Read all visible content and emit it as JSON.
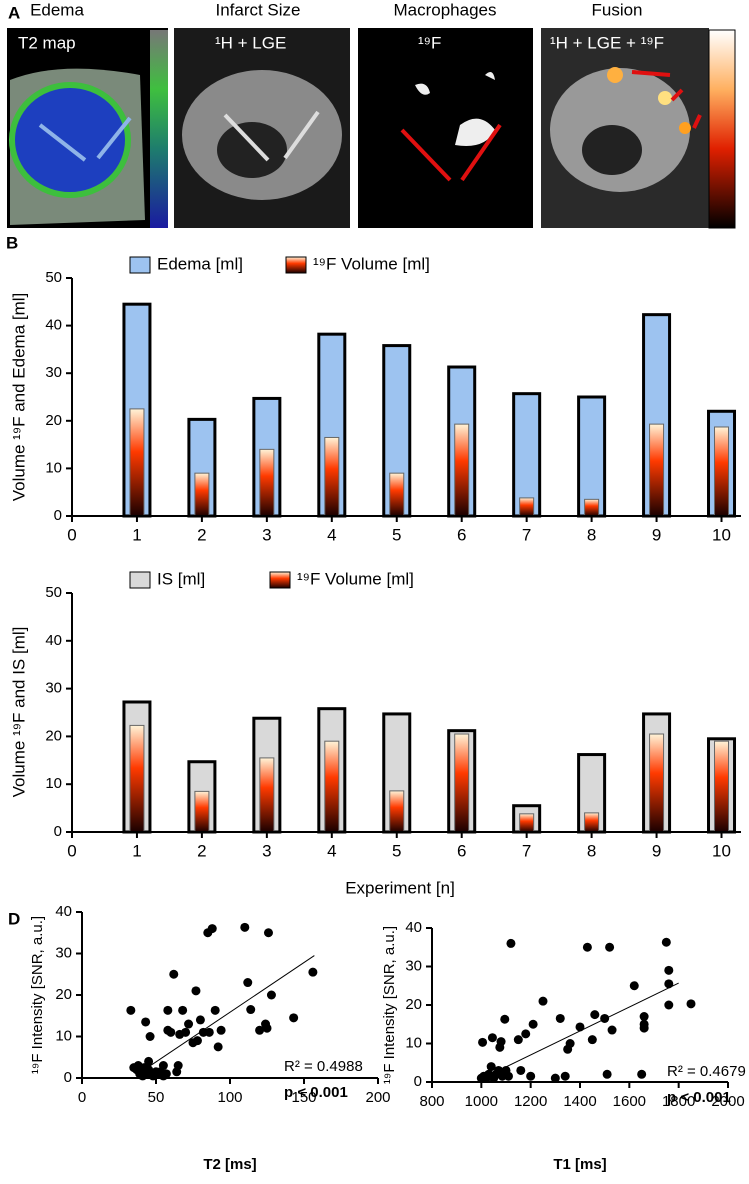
{
  "panel_labels": [
    "A",
    "B",
    "D"
  ],
  "panel_a": [
    {
      "title": "Edema",
      "label": "T2 map"
    },
    {
      "title": "Infarct Size",
      "label": "¹H + LGE"
    },
    {
      "title": "Macrophages",
      "label": "¹⁹F"
    },
    {
      "title": "Fusion",
      "label": "¹H + LGE + ¹⁹F"
    }
  ],
  "chart_data": [
    {
      "type": "bar",
      "ylabel": "Volume ¹⁹F and Edema [ml]",
      "x": [
        1,
        2,
        3,
        4,
        5,
        6,
        7,
        8,
        9,
        10
      ],
      "series": [
        {
          "name": "Edema [ml]",
          "color": "#9dc3f0",
          "values": [
            44.5,
            20.3,
            24.7,
            38.2,
            35.8,
            31.3,
            25.7,
            25,
            42.3,
            22
          ]
        },
        {
          "name": "¹⁹F Volume [ml]",
          "color": "#ff3a00",
          "values": [
            22.5,
            9,
            14,
            16.5,
            9,
            19.3,
            3.8,
            3.5,
            19.3,
            18.7
          ]
        }
      ],
      "xlim": [
        0,
        10.3
      ],
      "xticks": [
        0,
        1,
        2,
        3,
        4,
        5,
        6,
        7,
        8,
        9,
        10
      ],
      "ylim": [
        0,
        50
      ],
      "yticks": [
        0,
        10,
        20,
        30,
        40,
        50
      ]
    },
    {
      "type": "bar",
      "ylabel": "Volume ¹⁹F and IS [ml]",
      "xlabel": "Experiment [n]",
      "x": [
        1,
        2,
        3,
        4,
        5,
        6,
        7,
        8,
        9,
        10
      ],
      "series": [
        {
          "name": "IS [ml]",
          "color": "#d9d9d9",
          "values": [
            27.2,
            14.7,
            23.8,
            25.8,
            24.7,
            21.2,
            5.5,
            16.2,
            24.7,
            19.5
          ]
        },
        {
          "name": "¹⁹F Volume [ml]",
          "color": "#ff3a00",
          "values": [
            22.3,
            8.5,
            15.5,
            19,
            8.6,
            20.5,
            3.8,
            4,
            20.5,
            19
          ]
        }
      ],
      "xlim": [
        0,
        10.3
      ],
      "xticks": [
        0,
        1,
        2,
        3,
        4,
        5,
        6,
        7,
        8,
        9,
        10
      ],
      "ylim": [
        0,
        50
      ],
      "yticks": [
        0,
        10,
        20,
        30,
        40,
        50
      ]
    },
    {
      "type": "scatter",
      "ylabel": "¹⁹F Intensity [SNR, a.u.]",
      "xlabel": "T2 [ms]",
      "color": "#000000",
      "x": [
        33,
        35,
        37,
        38,
        39,
        40,
        41,
        42,
        43,
        44,
        45,
        45,
        46,
        47,
        48,
        50,
        52,
        53,
        55,
        55,
        57,
        58,
        58,
        60,
        62,
        64,
        65,
        66,
        68,
        70,
        72,
        75,
        77,
        78,
        80,
        82,
        85,
        86,
        88,
        90,
        92,
        94,
        110,
        112,
        114,
        120,
        124,
        125,
        126,
        128,
        143,
        156
      ],
      "values": [
        16.3,
        2.5,
        2,
        3,
        1,
        1.5,
        0.5,
        2.5,
        13.5,
        1,
        2,
        4,
        10,
        1,
        0.5,
        1.5,
        1,
        1.5,
        3,
        0.5,
        1,
        16.3,
        11.5,
        11,
        25,
        1.5,
        3,
        10.5,
        16.3,
        11,
        13,
        8.5,
        21,
        9,
        14,
        11,
        35,
        11,
        36,
        16.3,
        7.5,
        11.5,
        36.3,
        23,
        16.5,
        11.5,
        13,
        12,
        35,
        20,
        14.5,
        25.5
      ],
      "trendline": {
        "x": [
          38,
          157
        ],
        "values": [
          1,
          29.5
        ]
      },
      "annotations": [
        "R² = 0.4988",
        "p < 0.001"
      ],
      "xlim": [
        0,
        200
      ],
      "xticks": [
        0,
        50,
        100,
        150,
        200
      ],
      "ylim": [
        0,
        40
      ],
      "yticks": [
        0,
        10,
        20,
        30,
        40
      ]
    },
    {
      "type": "scatter",
      "ylabel": "¹⁹F Intensity [SNR, a.u.]",
      "xlabel": "T1 [ms]",
      "color": "#000000",
      "x": [
        1000,
        1005,
        1010,
        1020,
        1030,
        1040,
        1045,
        1050,
        1060,
        1070,
        1075,
        1080,
        1085,
        1090,
        1095,
        1100,
        1110,
        1120,
        1150,
        1160,
        1180,
        1200,
        1210,
        1250,
        1300,
        1320,
        1340,
        1350,
        1360,
        1400,
        1430,
        1450,
        1460,
        1500,
        1510,
        1520,
        1530,
        1620,
        1650,
        1660,
        1660,
        1660,
        1750,
        1760,
        1760,
        1760,
        1850
      ],
      "values": [
        1,
        10.3,
        1.5,
        1,
        2,
        4,
        11.5,
        1,
        2,
        3,
        9,
        10.5,
        1.5,
        2.5,
        16.3,
        3,
        1.5,
        36,
        11,
        3,
        12.5,
        1.5,
        15,
        21,
        1,
        16.5,
        1.5,
        8.5,
        10,
        14.3,
        35,
        11,
        17.5,
        16.5,
        2,
        35,
        13.5,
        25,
        2,
        17,
        15,
        14,
        36.3,
        29,
        25.5,
        20,
        20.3
      ],
      "trendline": {
        "x": [
          1000,
          1800
        ],
        "values": [
          0.8,
          25.7
        ]
      },
      "annotations": [
        "R² = 0.4679",
        "p < 0.001"
      ],
      "xlim": [
        800,
        2000
      ],
      "xticks": [
        800,
        1000,
        1200,
        1400,
        1600,
        1800,
        2000
      ],
      "ylim": [
        0,
        40
      ],
      "yticks": [
        0,
        10,
        20,
        30,
        40
      ]
    }
  ]
}
